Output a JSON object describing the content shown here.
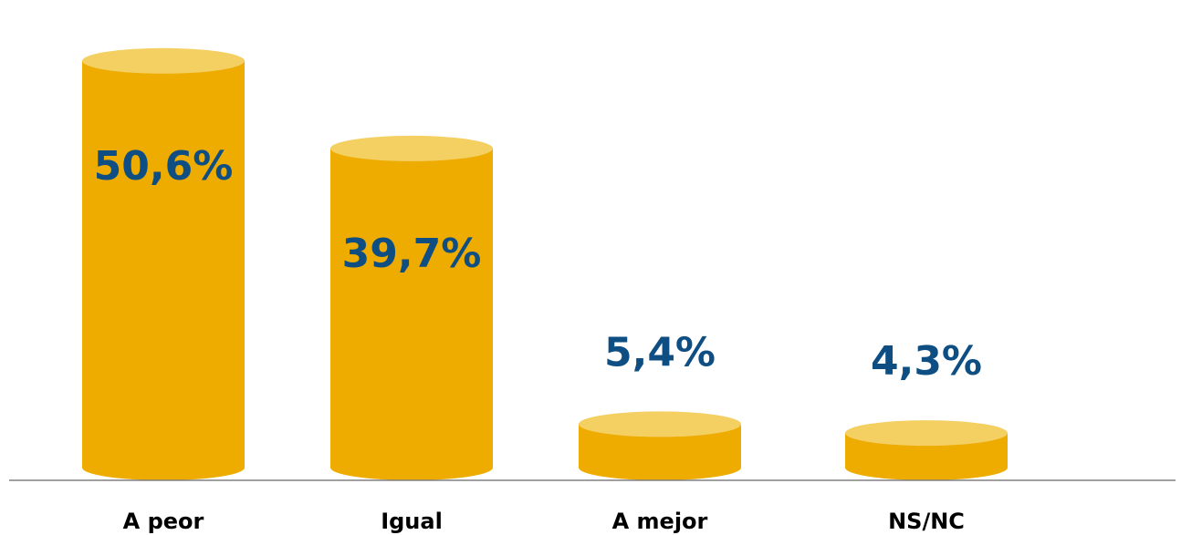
{
  "chart_data": {
    "type": "bar",
    "categories": [
      "A peor",
      "Igual",
      "A mejor",
      "NS/NC"
    ],
    "values": [
      50.6,
      39.7,
      5.4,
      4.3
    ],
    "value_labels": [
      "50,6%",
      "39,7%",
      "5,4%",
      "4,3%"
    ],
    "title": "",
    "xlabel": "",
    "ylabel": "",
    "ylim": [
      0,
      55
    ],
    "grid": false,
    "legend": "none",
    "colors": {
      "bar_body": "#eeab00",
      "bar_top": "#f4cf62",
      "value_label": "#0f4e82",
      "axis": "#808080",
      "category_label": "#000000"
    }
  }
}
